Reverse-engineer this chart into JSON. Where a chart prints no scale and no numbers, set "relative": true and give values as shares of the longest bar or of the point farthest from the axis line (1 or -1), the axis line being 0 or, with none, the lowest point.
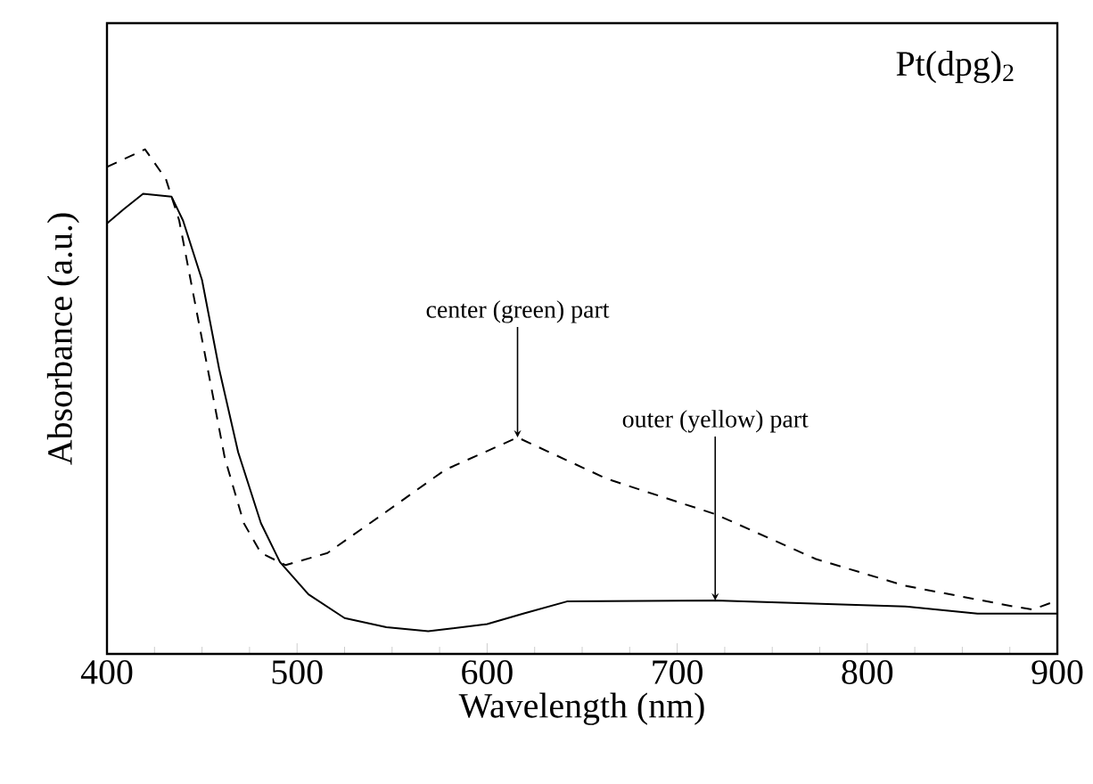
{
  "chart_data": {
    "type": "line",
    "xlabel": "Wavelength  (nm)",
    "ylabel": "Absorbance  (a.u.)",
    "relative": true,
    "xlim": [
      400,
      900
    ],
    "xticks": [
      400,
      500,
      600,
      700,
      800,
      900
    ],
    "series": [
      {
        "color": "#000000",
        "line_style": "solid",
        "x": [
          400,
          409,
          419,
          434,
          440,
          450,
          459,
          469,
          481,
          491,
          506,
          525,
          547,
          569,
          600,
          619,
          642,
          720,
          820,
          858,
          900
        ],
        "values": [
          0.853,
          0.882,
          0.912,
          0.906,
          0.859,
          0.741,
          0.565,
          0.4,
          0.259,
          0.182,
          0.118,
          0.071,
          0.053,
          0.045,
          0.059,
          0.08,
          0.104,
          0.106,
          0.094,
          0.08,
          0.08
        ]
      },
      {
        "color": "#000000",
        "line_style": "dashed",
        "x": [
          400,
          420,
          431,
          438,
          447,
          453,
          462,
          472,
          481,
          494,
          516,
          547,
          569,
          578,
          616,
          663,
          720,
          773,
          820,
          877,
          887,
          900
        ],
        "values": [
          0.965,
          1.0,
          0.941,
          0.859,
          0.682,
          0.565,
          0.388,
          0.259,
          0.2,
          0.176,
          0.2,
          0.282,
          0.341,
          0.365,
          0.429,
          0.347,
          0.277,
          0.188,
          0.135,
          0.094,
          0.088,
          0.106
        ]
      }
    ],
    "annotations": [
      "Pt(dpg)$_{2}$",
      {
        "text": "center (green) part",
        "x": 616,
        "y": 0.429
      },
      {
        "text": "outer (yellow) part",
        "x": 720,
        "y": 0.106
      }
    ]
  }
}
